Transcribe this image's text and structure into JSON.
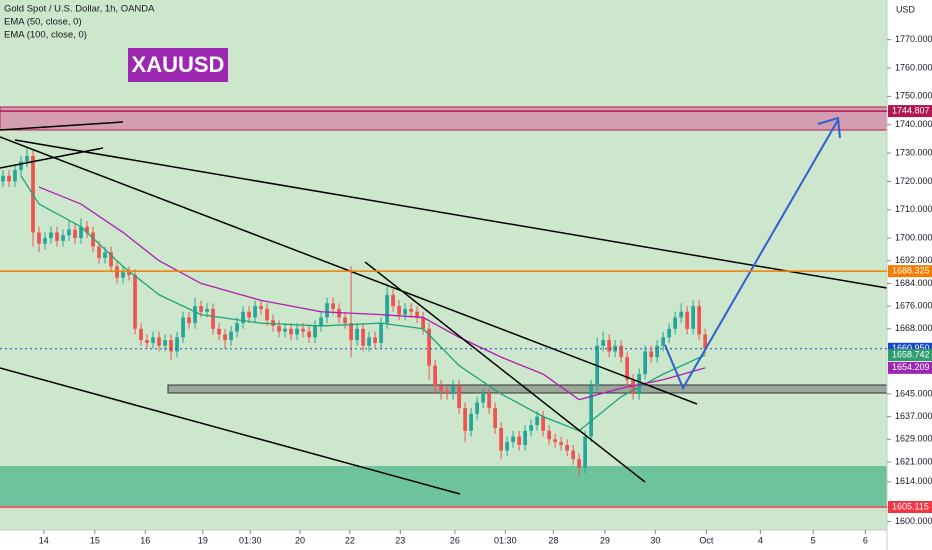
{
  "chart_data": {
    "type": "candlestick",
    "title": "XAUUSD",
    "legend": [
      "Gold Spot / U.S. Dollar, 1h, OANDA",
      "EMA (50, close, 0)",
      "EMA (100, close, 0)"
    ],
    "y_axis_label": "USD",
    "up_color": "#26a69a",
    "down_color": "#ef5350",
    "ylim": [
      1597,
      1784
    ],
    "xlim": [
      -0.5,
      147.3
    ],
    "yticks": [
      {
        "value": 1770,
        "label": "1770.000"
      },
      {
        "value": 1760,
        "label": "1760.000"
      },
      {
        "value": 1750,
        "label": "1750.000"
      },
      {
        "value": 1740,
        "label": "1740.000"
      },
      {
        "value": 1730,
        "label": "1730.000"
      },
      {
        "value": 1720,
        "label": "1720.000"
      },
      {
        "value": 1710,
        "label": "1710.000"
      },
      {
        "value": 1700,
        "label": "1700.000"
      },
      {
        "value": 1692,
        "label": "1692.000"
      },
      {
        "value": 1684,
        "label": "1684.000"
      },
      {
        "value": 1676,
        "label": "1676.000"
      },
      {
        "value": 1668,
        "label": "1668.000"
      },
      {
        "value": 1645,
        "label": "1645.000"
      },
      {
        "value": 1637,
        "label": "1637.000"
      },
      {
        "value": 1629,
        "label": "1629.000"
      },
      {
        "value": 1621,
        "label": "1621.000"
      },
      {
        "value": 1614,
        "label": "1614.000"
      },
      {
        "value": 1600,
        "label": "1600.000"
      }
    ],
    "xticks": [
      {
        "value": 6.8,
        "label": "14"
      },
      {
        "value": 15.3,
        "label": "15"
      },
      {
        "value": 23.7,
        "label": "16"
      },
      {
        "value": 33.3,
        "label": "19"
      },
      {
        "value": 41.2,
        "label": "01:30"
      },
      {
        "value": 49.5,
        "label": "20"
      },
      {
        "value": 57.8,
        "label": "22"
      },
      {
        "value": 66.2,
        "label": "23"
      },
      {
        "value": 75.3,
        "label": "26"
      },
      {
        "value": 83.7,
        "label": "01:30"
      },
      {
        "value": 91.7,
        "label": "28"
      },
      {
        "value": 100.3,
        "label": "29"
      },
      {
        "value": 108.7,
        "label": "30"
      },
      {
        "value": 117.2,
        "label": "Oct"
      },
      {
        "value": 126.2,
        "label": "4"
      },
      {
        "value": 135,
        "label": "5"
      },
      {
        "value": 143.7,
        "label": "6"
      }
    ],
    "price_labels": [
      {
        "value": 1744.807,
        "label": "1744.807",
        "color": "#b2184f",
        "style": "solid"
      },
      {
        "value": 1688.325,
        "label": "1688.325",
        "color": "#f57c00",
        "style": "solid"
      },
      {
        "value": 1660.95,
        "label": "1660.950",
        "color": "#1848cc",
        "style": "dotted"
      },
      {
        "value": 1658.742,
        "label": "1658.742",
        "color": "#2e9e6e",
        "style": "none"
      },
      {
        "value": 1654.209,
        "label": "1654.209",
        "color": "#9c27b0",
        "style": "none"
      },
      {
        "value": 1605.115,
        "label": "1605.115",
        "color": "#f23645",
        "style": "solid"
      }
    ],
    "series": [
      {
        "name": "EMA (50, close, 0)",
        "color": "#1fa37a",
        "x": [
          3,
          6,
          13,
          20,
          26,
          33,
          43,
          53,
          63,
          70,
          76,
          83,
          90,
          96,
          103,
          110,
          117
        ],
        "values": [
          1722,
          1712,
          1704,
          1690,
          1680,
          1673,
          1670,
          1669,
          1670,
          1668,
          1655,
          1645,
          1637,
          1632,
          1644,
          1652,
          1658.742
        ]
      },
      {
        "name": "EMA (100, close, 0)",
        "color": "#b01cb0",
        "x": [
          6,
          13,
          20,
          26,
          33,
          43,
          53,
          63,
          70,
          76,
          83,
          90,
          96,
          103,
          110,
          117
        ],
        "values": [
          1718,
          1712,
          1702,
          1692,
          1684,
          1678,
          1674,
          1673,
          1672,
          1665,
          1658,
          1652,
          1643,
          1647,
          1650,
          1654.209
        ]
      }
    ],
    "ohlc": [
      [
        1720,
        1724,
        1718,
        1722
      ],
      [
        1722,
        1724,
        1718,
        1720
      ],
      [
        1720,
        1726,
        1718,
        1724
      ],
      [
        1724,
        1729,
        1722,
        1727
      ],
      [
        1727,
        1732,
        1725,
        1729
      ],
      [
        1729,
        1731,
        1697,
        1702
      ],
      [
        1702,
        1704,
        1695,
        1698
      ],
      [
        1698,
        1702,
        1696,
        1700
      ],
      [
        1700,
        1704,
        1698,
        1702
      ],
      [
        1702,
        1704,
        1697,
        1699
      ],
      [
        1699,
        1703,
        1697,
        1701
      ],
      [
        1701,
        1706,
        1699,
        1703
      ],
      [
        1703,
        1705,
        1698,
        1700
      ],
      [
        1700,
        1707,
        1698,
        1704
      ],
      [
        1704,
        1706,
        1700,
        1702
      ],
      [
        1702,
        1704,
        1695,
        1697
      ],
      [
        1697,
        1699,
        1691,
        1693
      ],
      [
        1693,
        1697,
        1691,
        1695
      ],
      [
        1695,
        1697,
        1688,
        1690
      ],
      [
        1690,
        1692,
        1684,
        1686
      ],
      [
        1686,
        1690,
        1684,
        1688
      ],
      [
        1688,
        1690,
        1685,
        1687
      ],
      [
        1687,
        1689,
        1666,
        1668
      ],
      [
        1668,
        1670,
        1662,
        1664
      ],
      [
        1664,
        1666,
        1661,
        1663
      ],
      [
        1663,
        1667,
        1661,
        1665
      ],
      [
        1665,
        1667,
        1660,
        1662
      ],
      [
        1662,
        1666,
        1660,
        1664
      ],
      [
        1664,
        1666,
        1657,
        1660
      ],
      [
        1660,
        1667,
        1658,
        1665
      ],
      [
        1665,
        1674,
        1663,
        1672
      ],
      [
        1672,
        1674,
        1668,
        1670
      ],
      [
        1670,
        1679,
        1668,
        1676
      ],
      [
        1676,
        1678,
        1672,
        1674
      ],
      [
        1674,
        1677,
        1672,
        1675
      ],
      [
        1675,
        1677,
        1666,
        1668
      ],
      [
        1668,
        1670,
        1664,
        1666
      ],
      [
        1666,
        1668,
        1661,
        1664
      ],
      [
        1664,
        1669,
        1662,
        1667
      ],
      [
        1667,
        1672,
        1665,
        1670
      ],
      [
        1670,
        1676,
        1668,
        1674
      ],
      [
        1674,
        1676,
        1670,
        1672
      ],
      [
        1672,
        1678,
        1670,
        1676
      ],
      [
        1676,
        1678,
        1673,
        1675
      ],
      [
        1675,
        1677,
        1669,
        1671
      ],
      [
        1671,
        1673,
        1667,
        1669
      ],
      [
        1669,
        1671,
        1665,
        1667
      ],
      [
        1667,
        1670,
        1665,
        1668
      ],
      [
        1668,
        1670,
        1664,
        1666
      ],
      [
        1666,
        1670,
        1664,
        1668
      ],
      [
        1668,
        1670,
        1665,
        1667
      ],
      [
        1667,
        1669,
        1663,
        1665
      ],
      [
        1665,
        1671,
        1663,
        1669
      ],
      [
        1669,
        1674,
        1667,
        1672
      ],
      [
        1672,
        1679,
        1670,
        1677
      ],
      [
        1677,
        1679,
        1673,
        1675
      ],
      [
        1675,
        1677,
        1670,
        1672
      ],
      [
        1672,
        1674,
        1668,
        1670
      ],
      [
        1670,
        1690,
        1658,
        1664
      ],
      [
        1664,
        1670,
        1662,
        1668
      ],
      [
        1668,
        1670,
        1660,
        1662
      ],
      [
        1662,
        1667,
        1660,
        1665
      ],
      [
        1665,
        1667,
        1661,
        1663
      ],
      [
        1663,
        1672,
        1661,
        1670
      ],
      [
        1670,
        1684,
        1668,
        1680
      ],
      [
        1680,
        1682,
        1674,
        1676
      ],
      [
        1676,
        1678,
        1671,
        1673
      ],
      [
        1673,
        1677,
        1671,
        1675
      ],
      [
        1675,
        1677,
        1672,
        1674
      ],
      [
        1674,
        1676,
        1670,
        1672
      ],
      [
        1672,
        1674,
        1666,
        1668
      ],
      [
        1668,
        1670,
        1650,
        1655
      ],
      [
        1655,
        1657,
        1645,
        1648
      ],
      [
        1648,
        1650,
        1643,
        1646
      ],
      [
        1646,
        1648,
        1643,
        1645
      ],
      [
        1645,
        1650,
        1643,
        1648
      ],
      [
        1648,
        1650,
        1638,
        1640
      ],
      [
        1640,
        1642,
        1628,
        1632
      ],
      [
        1632,
        1640,
        1630,
        1638
      ],
      [
        1638,
        1644,
        1636,
        1642
      ],
      [
        1642,
        1647,
        1640,
        1645
      ],
      [
        1645,
        1647,
        1638,
        1640
      ],
      [
        1640,
        1642,
        1631,
        1633
      ],
      [
        1633,
        1635,
        1622,
        1625
      ],
      [
        1625,
        1630,
        1623,
        1628
      ],
      [
        1628,
        1632,
        1626,
        1630
      ],
      [
        1630,
        1632,
        1625,
        1627
      ],
      [
        1627,
        1634,
        1625,
        1632
      ],
      [
        1632,
        1636,
        1630,
        1634
      ],
      [
        1634,
        1639,
        1632,
        1637
      ],
      [
        1637,
        1639,
        1630,
        1632
      ],
      [
        1632,
        1634,
        1627,
        1629
      ],
      [
        1629,
        1631,
        1626,
        1628
      ],
      [
        1628,
        1630,
        1625,
        1627
      ],
      [
        1627,
        1629,
        1623,
        1625
      ],
      [
        1625,
        1627,
        1620,
        1622
      ],
      [
        1622,
        1624,
        1616,
        1619
      ],
      [
        1619,
        1632,
        1617,
        1630
      ],
      [
        1630,
        1650,
        1628,
        1648
      ],
      [
        1648,
        1665,
        1646,
        1662
      ],
      [
        1662,
        1667,
        1660,
        1664
      ],
      [
        1664,
        1666,
        1658,
        1660
      ],
      [
        1660,
        1664,
        1658,
        1662
      ],
      [
        1662,
        1664,
        1656,
        1658
      ],
      [
        1658,
        1660,
        1648,
        1650
      ],
      [
        1650,
        1652,
        1643,
        1645
      ],
      [
        1645,
        1654,
        1643,
        1652
      ],
      [
        1652,
        1662,
        1650,
        1660
      ],
      [
        1660,
        1662,
        1656,
        1658
      ],
      [
        1658,
        1664,
        1656,
        1662
      ],
      [
        1662,
        1667,
        1660,
        1665
      ],
      [
        1665,
        1670,
        1663,
        1668
      ],
      [
        1668,
        1674,
        1666,
        1672
      ],
      [
        1672,
        1677,
        1670,
        1674
      ],
      [
        1674,
        1676,
        1666,
        1668
      ],
      [
        1668,
        1678,
        1666,
        1676
      ],
      [
        1676,
        1678,
        1664,
        1666
      ],
      [
        1666,
        1668,
        1659,
        1661
      ]
    ]
  }
}
